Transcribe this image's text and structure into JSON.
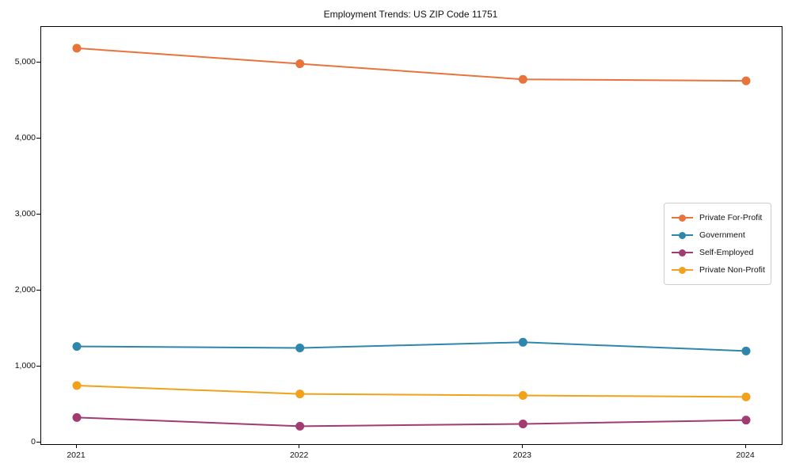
{
  "title": "Employment Trends: US ZIP Code 11751",
  "chart_data": {
    "type": "line",
    "title": "Employment Trends: US ZIP Code 11751",
    "xlabel": "",
    "ylabel": "",
    "categories": [
      "2021",
      "2022",
      "2023",
      "2024"
    ],
    "series": [
      {
        "name": "Private For-Profit",
        "color": "#E8743B",
        "values": [
          5190,
          4985,
          4780,
          4760
        ]
      },
      {
        "name": "Government",
        "color": "#2E86AB",
        "values": [
          1265,
          1245,
          1320,
          1205
        ]
      },
      {
        "name": "Self-Employed",
        "color": "#A23B72",
        "values": [
          330,
          215,
          245,
          295
        ]
      },
      {
        "name": "Private Non-Profit",
        "color": "#F1A11B",
        "values": [
          750,
          640,
          620,
          600
        ]
      }
    ],
    "ylim": [
      0,
      5470
    ],
    "yticks": [
      0,
      1000,
      2000,
      3000,
      4000,
      5000
    ],
    "ytick_labels": [
      "0",
      "1,000",
      "2,000",
      "3,000",
      "4,000",
      "5,000"
    ],
    "grid": false,
    "legend_position": "right-middle",
    "marker": "circle"
  }
}
